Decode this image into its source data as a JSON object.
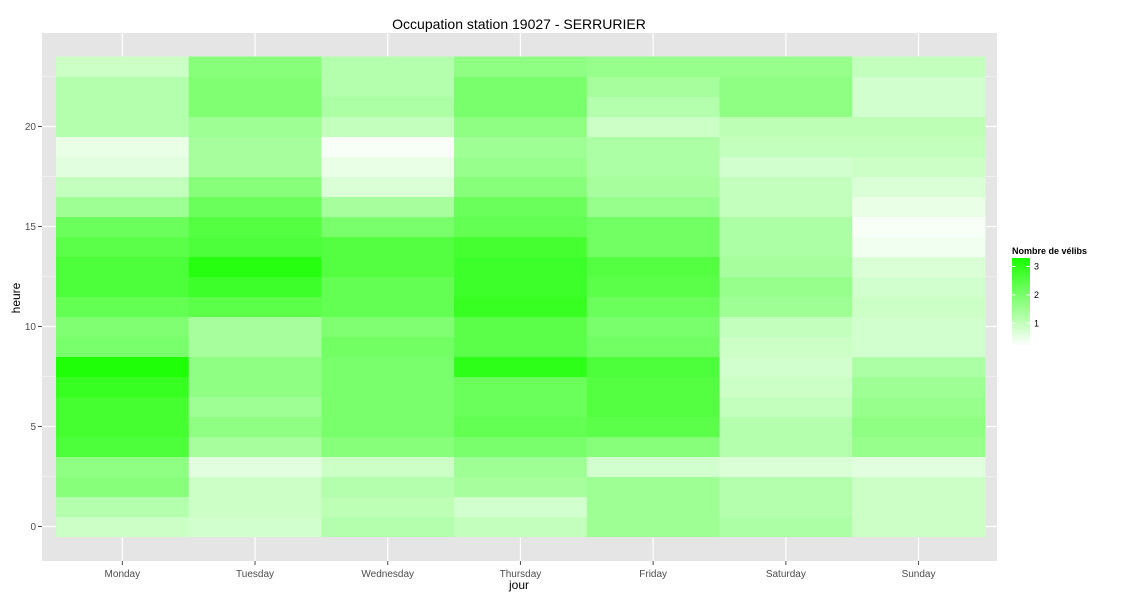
{
  "chart_data": {
    "type": "heatmap",
    "title": "Occupation station 19027 - SERRURIER",
    "xlabel": "jour",
    "ylabel": "heure",
    "categories": [
      "Monday",
      "Tuesday",
      "Wednesday",
      "Thursday",
      "Friday",
      "Saturday",
      "Sunday"
    ],
    "hours": [
      0,
      1,
      2,
      3,
      4,
      5,
      6,
      7,
      8,
      9,
      10,
      11,
      12,
      13,
      14,
      15,
      16,
      17,
      18,
      19,
      20,
      21,
      22,
      23
    ],
    "y_ticks": [
      0,
      5,
      10,
      15,
      20
    ],
    "ylim": [
      -0.5,
      23.5
    ],
    "grid": true,
    "values": [
      [
        0.9,
        0.8,
        1.2,
        1.0,
        1.5,
        1.3,
        0.9
      ],
      [
        1.2,
        0.9,
        1.1,
        0.8,
        1.5,
        1.2,
        0.9
      ],
      [
        1.8,
        0.9,
        1.2,
        1.4,
        1.5,
        1.2,
        0.9
      ],
      [
        1.7,
        0.6,
        0.9,
        1.5,
        0.8,
        0.7,
        0.6
      ],
      [
        2.6,
        1.4,
        1.8,
        2.0,
        1.8,
        1.2,
        1.6
      ],
      [
        2.7,
        1.7,
        2.0,
        2.3,
        2.4,
        1.2,
        1.7
      ],
      [
        2.7,
        1.5,
        2.0,
        2.2,
        2.5,
        1.0,
        1.6
      ],
      [
        2.9,
        1.7,
        2.0,
        2.2,
        2.5,
        0.9,
        1.5
      ],
      [
        3.2,
        1.7,
        2.0,
        3.0,
        2.6,
        0.8,
        1.3
      ],
      [
        2.0,
        1.4,
        2.1,
        2.4,
        2.1,
        0.9,
        0.8
      ],
      [
        1.9,
        1.4,
        1.9,
        2.4,
        2.0,
        1.0,
        0.8
      ],
      [
        2.3,
        2.4,
        2.3,
        2.9,
        2.2,
        1.5,
        0.9
      ],
      [
        2.6,
        2.8,
        2.3,
        2.8,
        2.4,
        1.6,
        0.8
      ],
      [
        2.6,
        3.1,
        2.5,
        2.8,
        2.5,
        1.4,
        0.7
      ],
      [
        2.4,
        2.6,
        2.5,
        2.7,
        2.1,
        1.3,
        0.4
      ],
      [
        2.2,
        2.5,
        2.0,
        2.3,
        2.1,
        1.3,
        0.3
      ],
      [
        1.5,
        2.2,
        1.4,
        2.2,
        1.6,
        1.0,
        0.5
      ],
      [
        1.0,
        1.8,
        0.7,
        1.8,
        1.4,
        1.0,
        0.7
      ],
      [
        0.6,
        1.4,
        0.5,
        1.6,
        1.3,
        0.8,
        0.9
      ],
      [
        0.5,
        1.4,
        0.3,
        1.5,
        1.3,
        1.0,
        1.0
      ],
      [
        1.2,
        1.5,
        1.0,
        1.7,
        0.9,
        1.1,
        1.1
      ],
      [
        1.2,
        1.9,
        1.3,
        2.0,
        1.2,
        1.7,
        0.8
      ],
      [
        1.2,
        1.9,
        1.2,
        2.0,
        1.4,
        1.7,
        0.8
      ],
      [
        0.9,
        1.8,
        1.2,
        1.7,
        1.6,
        1.6,
        1.0
      ]
    ],
    "legend": {
      "title": "Nombre de vélibs",
      "placement": "right",
      "ticks": [
        1,
        2,
        3
      ],
      "range": [
        0.2,
        3.3
      ],
      "low_color": "#ffffff",
      "high_color": "#18ff00"
    },
    "panel_color": "#e5e5e5",
    "grid_color": "#ffffff"
  }
}
